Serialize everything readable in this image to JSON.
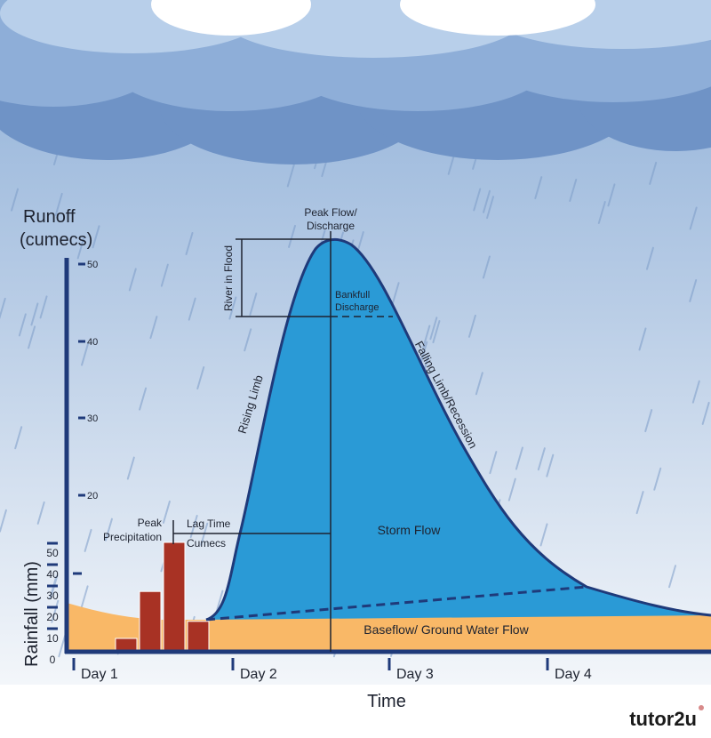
{
  "title_axis_runoff": [
    "Runoff",
    "(cumecs)"
  ],
  "axis_rainfall": "Rainfall (mm)",
  "axis_time": "Time",
  "runoff_ticks": [
    "50",
    "40",
    "30",
    "20"
  ],
  "rainfall_ticks": [
    "0",
    "10",
    "20",
    "30",
    "40",
    "50"
  ],
  "days": [
    "Day 1",
    "Day 2",
    "Day 3",
    "Day 4"
  ],
  "labels": {
    "peak_flow": [
      "Peak Flow/",
      "Discharge"
    ],
    "river_in_flood": "River in Flood",
    "bankfull": [
      "Bankfull",
      "Discharge"
    ],
    "rising_limb": "Rising Limb",
    "falling_limb": "Falling Limb/Recession",
    "peak_precip": [
      "Peak",
      "Precipitation"
    ],
    "lag_time": "Lag Time",
    "cumecs": "Cumecs",
    "storm_flow": "Storm Flow",
    "baseflow": "Baseflow/ Ground Water Flow"
  },
  "logo": "tutor2u",
  "colors": {
    "storm_flow": "#2a9ad6",
    "baseflow": "#f9b867",
    "rain_bars": "#a83224",
    "axis": "#1f3a7a"
  },
  "chart_data": {
    "type": "bar",
    "rainfall_mm": [
      10,
      32,
      55,
      18
    ],
    "rainfall_ylim": [
      0,
      50
    ],
    "runoff_ylim": [
      0,
      50
    ],
    "runoff_unit": "cumecs",
    "x_categories": [
      "Day 1",
      "Day 2",
      "Day 3",
      "Day 4"
    ]
  }
}
